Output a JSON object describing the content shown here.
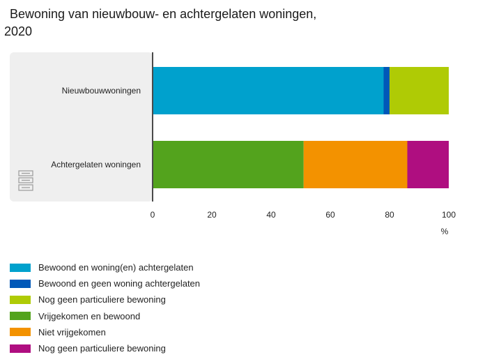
{
  "title": {
    "line1": "Bewoning van nieuwbouw- en achtergelaten woningen,",
    "line2": "2020"
  },
  "chart_data": {
    "type": "bar",
    "orientation": "horizontal",
    "stacked": true,
    "title": "Bewoning van nieuwbouw- en achtergelaten woningen, 2020",
    "xlabel": "%",
    "ylabel": "",
    "xlim": [
      0,
      100
    ],
    "x_ticks": [
      0,
      20,
      40,
      60,
      80,
      100
    ],
    "grid": false,
    "legend_position": "bottom",
    "groups": [
      {
        "category": "Nieuwbouwwoningen",
        "segments": [
          {
            "name": "Bewoond en woning(en) achtergelaten",
            "value": 78,
            "color": "#00a1cd"
          },
          {
            "name": "Bewoond en geen woning achtergelaten",
            "value": 2,
            "color": "#0058b8"
          },
          {
            "name": "Nog geen particuliere bewoning",
            "value": 20,
            "color": "#afcb05"
          }
        ]
      },
      {
        "category": "Achtergelaten woningen",
        "segments": [
          {
            "name": "Vrijgekomen en bewoond",
            "value": 51,
            "color": "#53a31d"
          },
          {
            "name": "Niet vrijgekomen",
            "value": 35,
            "color": "#f39200"
          },
          {
            "name": "Nog geen particuliere bewoning",
            "value": 14,
            "color": "#af0e80"
          }
        ]
      }
    ],
    "legend": [
      {
        "label": "Bewoond en woning(en) achtergelaten",
        "color": "#00a1cd"
      },
      {
        "label": "Bewoond en geen woning achtergelaten",
        "color": "#0058b8"
      },
      {
        "label": "Nog geen particuliere bewoning",
        "color": "#afcb05"
      },
      {
        "label": "Vrijgekomen en bewoond",
        "color": "#53a31d"
      },
      {
        "label": "Niet vrijgekomen",
        "color": "#f39200"
      },
      {
        "label": "Nog geen particuliere bewoning",
        "color": "#af0e80"
      }
    ]
  },
  "logo": {
    "name": "cbs-logo",
    "text": "cbs"
  }
}
